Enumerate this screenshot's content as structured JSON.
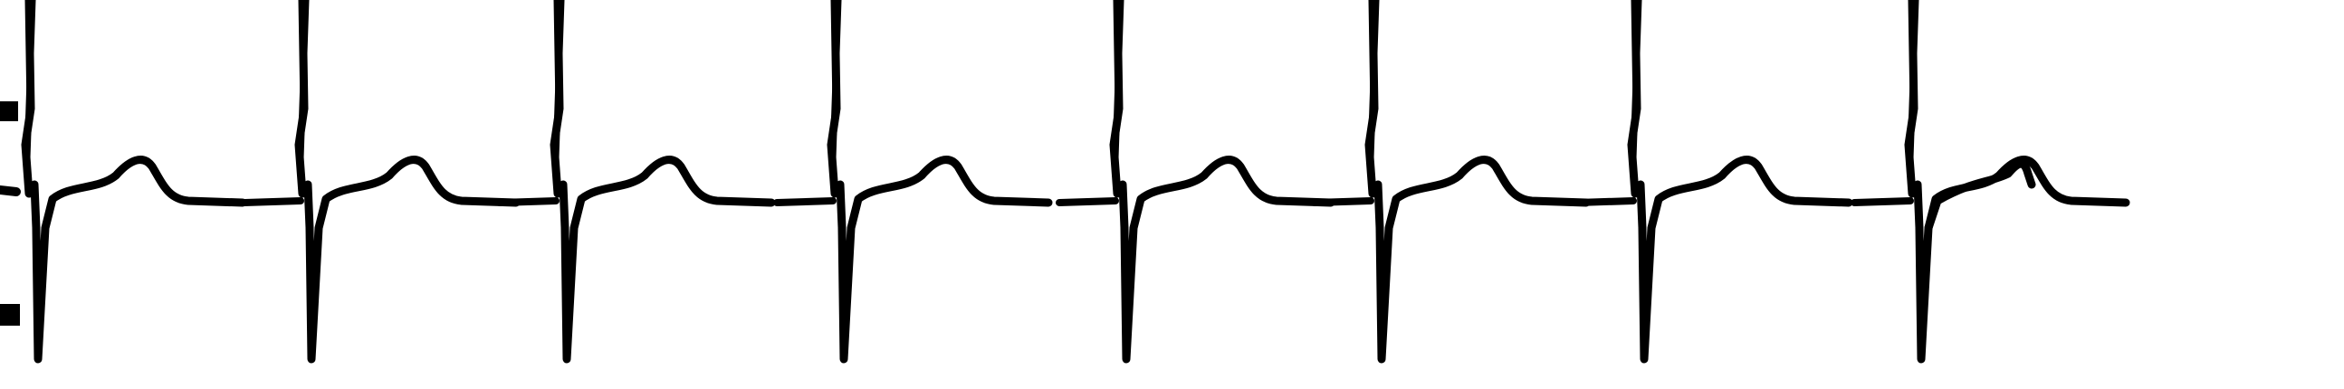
{
  "strip": {
    "kind": "ecg-rhythm-strip",
    "trace_color": "#000000",
    "background_color": "#ffffff",
    "beat_count": 8
  }
}
